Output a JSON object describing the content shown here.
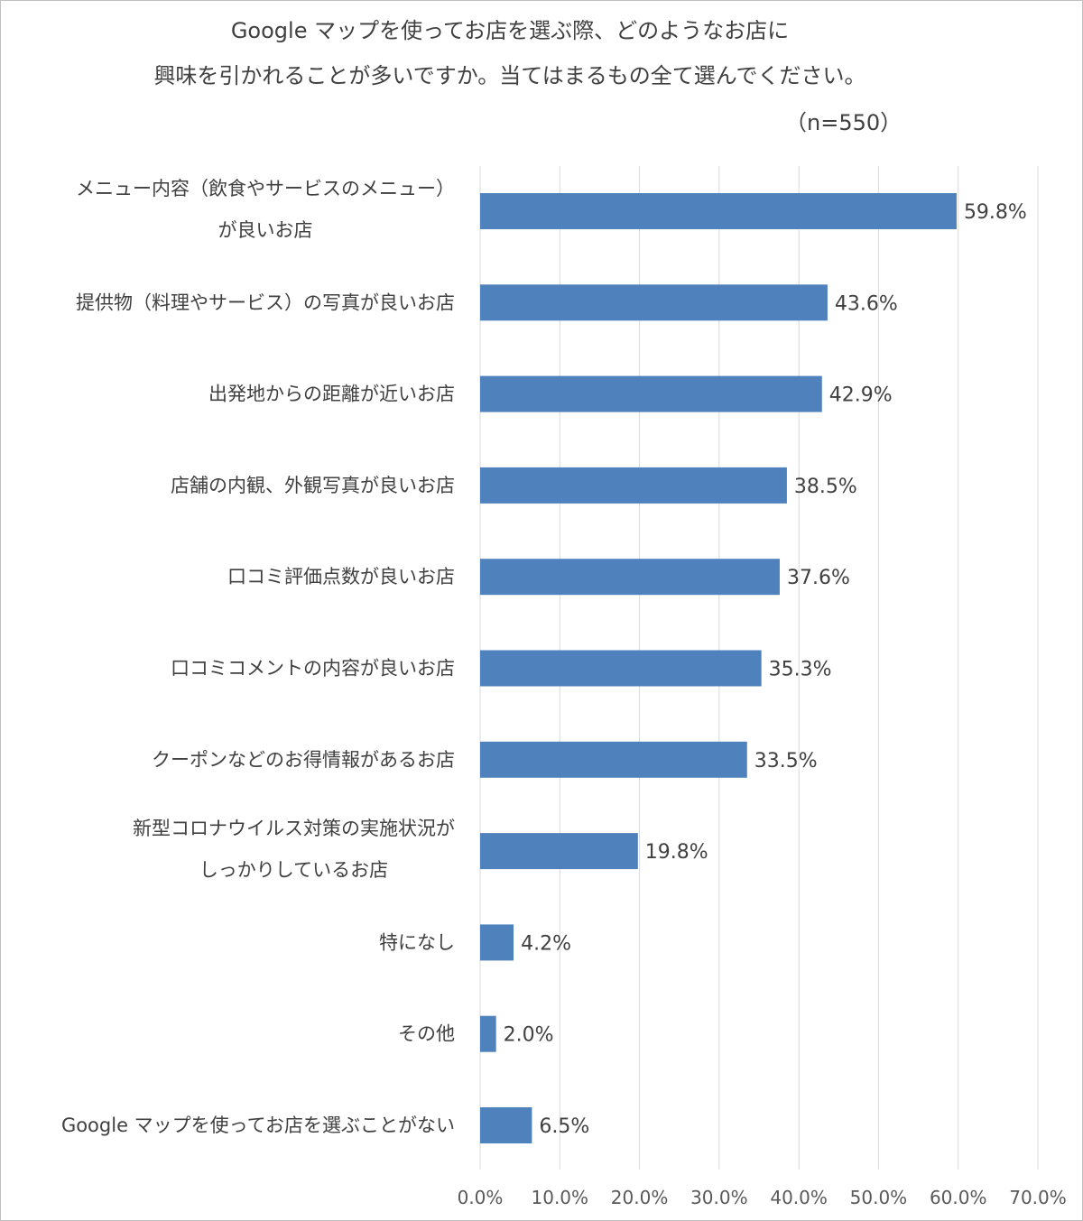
{
  "chart_data": {
    "type": "bar",
    "orientation": "horizontal",
    "title_line1": "Google マップを使ってお店を選ぶ際、どのようなお店に",
    "title_line2": "興味を引かれることが多いですか。当てはまるもの全て選んでください。",
    "sample_size": "（n=550）",
    "categories": [
      [
        "メニュー内容（飲食やサービスのメニュー）",
        "が良いお店"
      ],
      [
        "提供物（料理やサービス）の写真が良いお店"
      ],
      [
        "出発地からの距離が近いお店"
      ],
      [
        "店舗の内観、外観写真が良いお店"
      ],
      [
        "口コミ評価点数が良いお店"
      ],
      [
        "口コミコメントの内容が良いお店"
      ],
      [
        "クーポンなどのお得情報があるお店"
      ],
      [
        "新型コロナウイルス対策の実施状況が",
        "しっかりしているお店"
      ],
      [
        "特になし"
      ],
      [
        "その他"
      ],
      [
        "Google マップを使ってお店を選ぶことがない"
      ]
    ],
    "values": [
      59.8,
      43.6,
      42.9,
      38.5,
      37.6,
      35.3,
      33.5,
      19.8,
      4.2,
      2.0,
      6.5
    ],
    "value_labels": [
      "59.8%",
      "43.6%",
      "42.9%",
      "38.5%",
      "37.6%",
      "35.3%",
      "33.5%",
      "19.8%",
      "4.2%",
      "2.0%",
      "6.5%"
    ],
    "xlim": [
      0,
      70
    ],
    "x_ticks": [
      "0.0%",
      "10.0%",
      "20.0%",
      "30.0%",
      "40.0%",
      "50.0%",
      "60.0%",
      "70.0%"
    ],
    "grid": true,
    "bar_color": "#4f81bd",
    "grid_color": "#d9d9d9"
  }
}
